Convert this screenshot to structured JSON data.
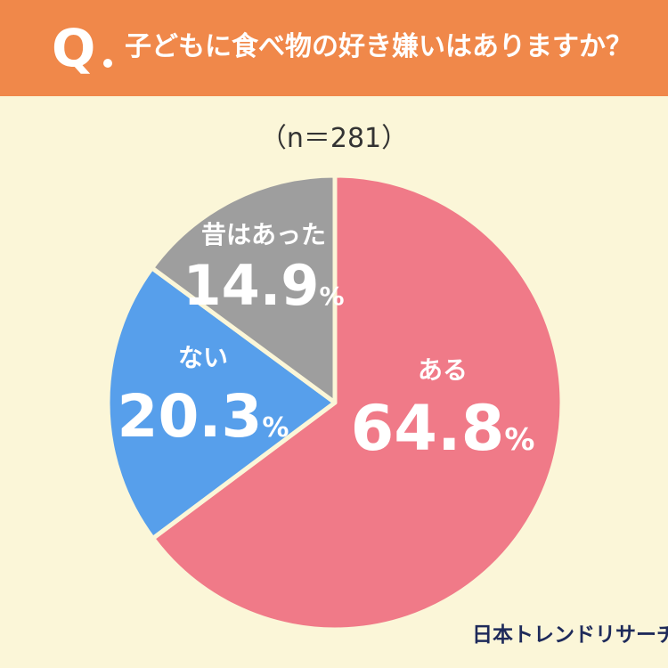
{
  "header": {
    "q_mark": "Q",
    "question": "子どもに食べ物の好き嫌いはありますか？"
  },
  "sample_note": "（n＝281）",
  "brand": "日本トレンドリサーチ",
  "colors": {
    "header_bg": "#F0884A",
    "page_bg": "#FBF6D8",
    "aru": "#F07A88",
    "nai": "#579FEB",
    "mukashi": "#9E9E9E"
  },
  "chart_data": {
    "type": "pie",
    "title": "子どもに食べ物の好き嫌いはありますか？",
    "subtitle": "（n＝281）",
    "slices": [
      {
        "label": "ある",
        "value": 64.8,
        "display": "64.8",
        "unit": "%",
        "color": "#F07A88"
      },
      {
        "label": "ない",
        "value": 20.3,
        "display": "20.3",
        "unit": "%",
        "color": "#579FEB"
      },
      {
        "label": "昔はあった",
        "value": 14.9,
        "display": "14.9",
        "unit": "%",
        "color": "#9E9E9E"
      }
    ],
    "start_angle": "12 o'clock",
    "direction": "clockwise",
    "legend": "none"
  }
}
